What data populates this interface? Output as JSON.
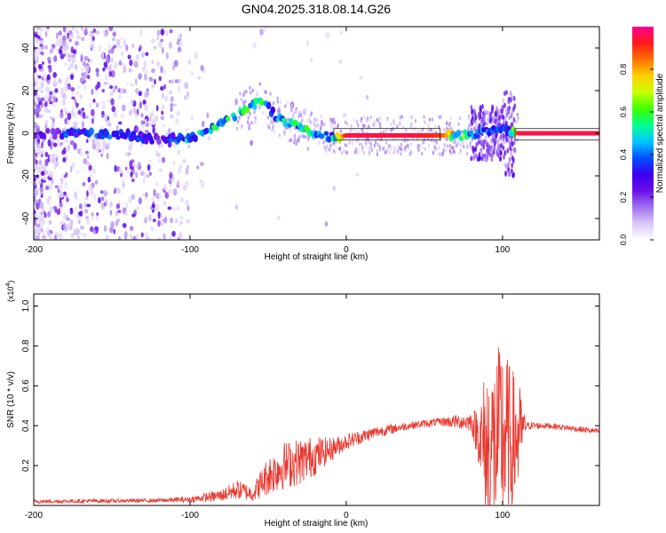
{
  "title": "GN04.2025.318.08.14.G26",
  "colors": {
    "snr_line": "#e8382f",
    "axis": "#000000",
    "colormap": [
      "#ffffff",
      "#d8c8f8",
      "#a070f0",
      "#6a0ee8",
      "#3a00f0",
      "#0050ff",
      "#00c8ff",
      "#00ff90",
      "#40ff00",
      "#c8ff00",
      "#ffd000",
      "#ff7000",
      "#ff1a1a",
      "#ff0090"
    ]
  },
  "chart_data": [
    {
      "type": "heatmap",
      "title": "GN04.2025.318.08.14.G26",
      "xlabel": "Height of straight line (km)",
      "ylabel": "Frequency (Hz)",
      "xlim": [
        -200,
        162
      ],
      "ylim": [
        -50,
        50
      ],
      "xticks": [
        -200,
        -100,
        0,
        100
      ],
      "yticks": [
        -40,
        -20,
        0,
        20,
        40
      ],
      "colorbar": {
        "label": "Normalized spectral amplitude",
        "range": [
          0,
          1
        ],
        "ticks": [
          0.0,
          0.2,
          0.4,
          0.6,
          0.8
        ]
      },
      "ridge": {
        "x": [
          -200,
          -180,
          -160,
          -140,
          -120,
          -100,
          -90,
          -80,
          -70,
          -60,
          -55,
          -50,
          -45,
          -40,
          -30,
          -20,
          -10,
          0,
          20,
          40,
          60,
          80,
          90,
          100,
          105,
          110,
          130,
          162
        ],
        "freq": [
          0,
          0,
          0,
          -1,
          -3,
          -2,
          1,
          4,
          9,
          13,
          15,
          12,
          8,
          6,
          3,
          0,
          -2,
          -1,
          -1,
          -1,
          -1,
          -1,
          1,
          2,
          1,
          0,
          0,
          0
        ],
        "amplitude": [
          0.2,
          0.35,
          0.4,
          0.35,
          0.3,
          0.45,
          0.5,
          0.55,
          0.5,
          0.55,
          0.5,
          0.55,
          0.45,
          0.5,
          0.55,
          0.5,
          0.45,
          0.95,
          0.95,
          0.95,
          0.9,
          0.5,
          0.4,
          0.35,
          0.4,
          0.95,
          0.95,
          0.95
        ]
      }
    },
    {
      "type": "line",
      "xlabel": "Height of straight line (km)",
      "ylabel": "SNR (10 * v/v)",
      "multiplier_base": "(x10",
      "multiplier_exp": "4",
      "multiplier_end": ")",
      "xlim": [
        -200,
        162
      ],
      "ylim": [
        0.0,
        1.06
      ],
      "xticks": [
        -200,
        -100,
        0,
        100
      ],
      "yticks": [
        0.2,
        0.4,
        0.6,
        0.8,
        1.0
      ],
      "envelope": {
        "x": [
          -200,
          -120,
          -100,
          -80,
          -70,
          -60,
          -50,
          -40,
          -30,
          -20,
          -10,
          0,
          20,
          40,
          60,
          80,
          85,
          90,
          95,
          100,
          105,
          110,
          115,
          130,
          162
        ],
        "mean": [
          0.02,
          0.025,
          0.03,
          0.05,
          0.08,
          0.06,
          0.15,
          0.2,
          0.22,
          0.25,
          0.28,
          0.32,
          0.37,
          0.4,
          0.42,
          0.42,
          0.35,
          0.25,
          0.3,
          0.35,
          0.3,
          0.35,
          0.4,
          0.4,
          0.37
        ],
        "spread": [
          0.01,
          0.01,
          0.015,
          0.03,
          0.05,
          0.04,
          0.1,
          0.12,
          0.12,
          0.1,
          0.06,
          0.04,
          0.03,
          0.02,
          0.02,
          0.05,
          0.15,
          0.5,
          0.45,
          0.5,
          0.4,
          0.3,
          0.02,
          0.015,
          0.015
        ]
      }
    }
  ]
}
